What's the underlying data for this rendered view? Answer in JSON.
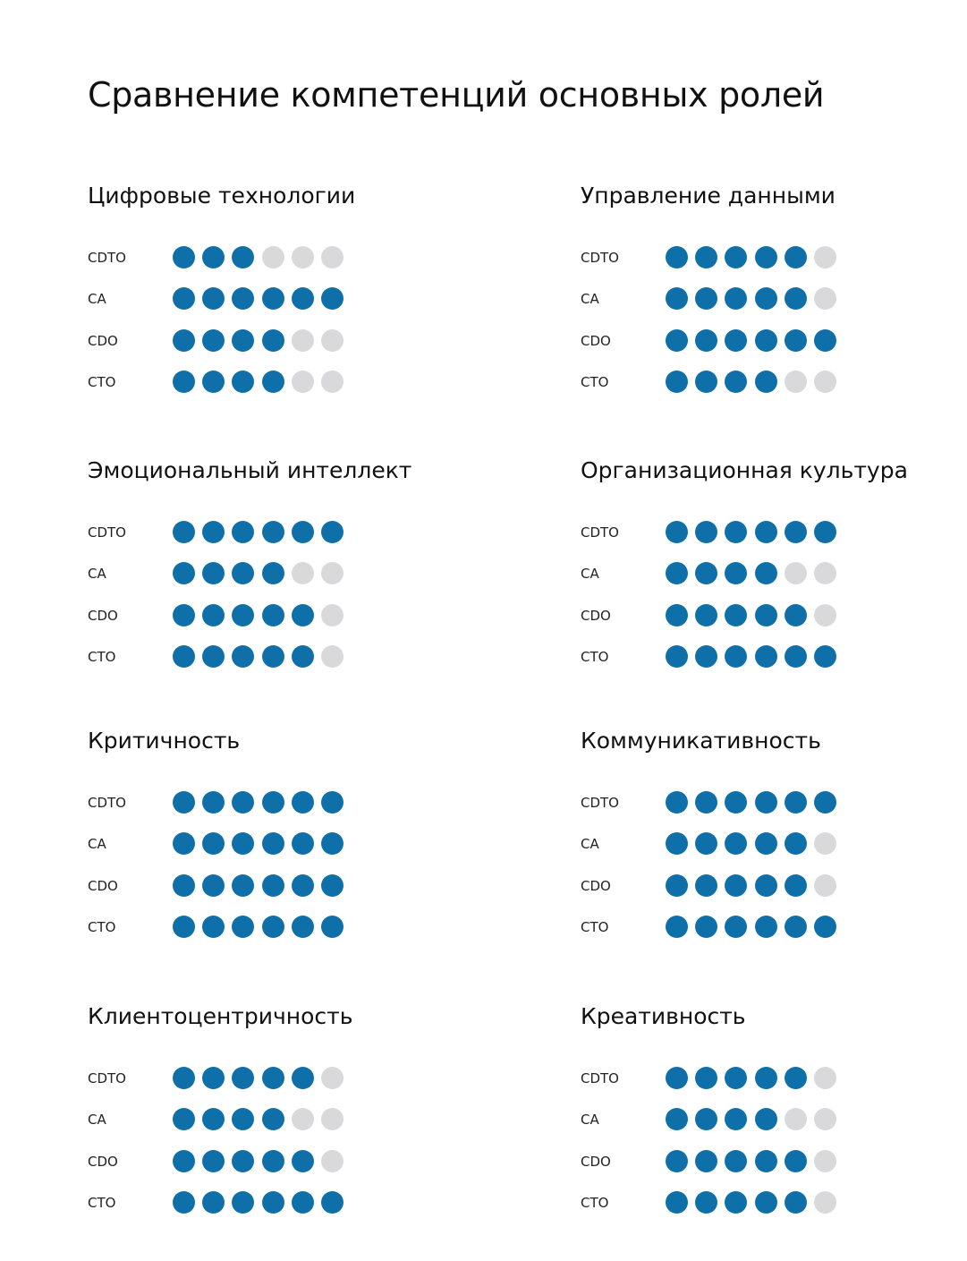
{
  "chart_data": {
    "type": "dot-matrix",
    "title": "Сравнение компетенций основных ролей",
    "max_score": 6,
    "roles": [
      "CDTO",
      "CA",
      "CDO",
      "CTO"
    ],
    "colors": {
      "filled": "#0f6fa8",
      "empty": "#d9d9db"
    },
    "panels": [
      {
        "title": "Цифровые технологии",
        "values": [
          3,
          6,
          4,
          4
        ]
      },
      {
        "title": "Управление данными",
        "values": [
          5,
          5,
          6,
          4
        ]
      },
      {
        "title": "Эмоциональный интеллект",
        "values": [
          6,
          4,
          5,
          5
        ]
      },
      {
        "title": "Организационная культура",
        "values": [
          6,
          4,
          5,
          6
        ]
      },
      {
        "title": "Критичность",
        "values": [
          6,
          6,
          6,
          6
        ]
      },
      {
        "title": "Коммуникативность",
        "values": [
          6,
          5,
          5,
          6
        ]
      },
      {
        "title": "Клиентоцентричность",
        "values": [
          5,
          4,
          5,
          6
        ]
      },
      {
        "title": "Креативность",
        "values": [
          5,
          4,
          5,
          5
        ]
      }
    ]
  }
}
